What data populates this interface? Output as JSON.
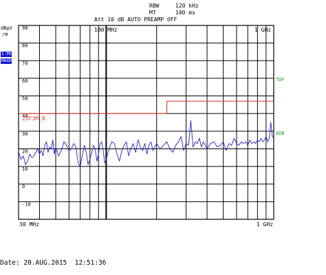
{
  "header": {
    "rbw_label": "RBW",
    "rbw_value": "120 kHz",
    "mt_label": "MT",
    "mt_value": "100 ms",
    "att_line": "Att 10 dB AUTO PREAMP OFF"
  },
  "left_panel": {
    "unit_line1": "dBµV",
    "unit_line2": "/m",
    "trace_badge": "1 PK",
    "detector_badge": "MAXH"
  },
  "right_panel": {
    "tdf_label": "TDF",
    "six_db_label": "6DB"
  },
  "footer": {
    "date_label": "Date:",
    "date_value": "20.AUG.2015",
    "time_value": "12:51:36"
  },
  "chart_data": {
    "type": "line",
    "x_scale": "log",
    "xlim": [
      30,
      1000
    ],
    "ylim": [
      -20,
      90
    ],
    "x_tick_labels": [
      "30 MHz",
      "100 MHz",
      "1 GHz",
      "1 GHz"
    ],
    "y_ticks": [
      90,
      80,
      70,
      60,
      50,
      40,
      30,
      20,
      10,
      0,
      -10
    ],
    "grid": true,
    "limit_line": {
      "name": "22F3M_B",
      "color": "#e8403a",
      "points": [
        [
          30,
          40
        ],
        [
          230,
          40
        ],
        [
          230,
          47
        ],
        [
          1000,
          47
        ]
      ]
    },
    "series": [
      {
        "color": "#1f1fd0",
        "x": [
          30,
          31,
          32,
          33,
          34,
          35,
          36,
          37,
          38,
          39,
          40,
          41,
          42,
          43,
          44,
          45,
          46,
          47,
          48,
          49,
          50,
          52,
          54,
          56,
          58,
          60,
          62,
          64,
          66,
          68,
          70,
          72,
          74,
          76,
          78,
          80,
          82,
          84,
          86,
          88,
          90,
          92,
          94,
          96,
          98,
          100,
          104,
          108,
          112,
          116,
          120,
          124,
          128,
          132,
          136,
          140,
          145,
          150,
          155,
          160,
          165,
          170,
          175,
          180,
          185,
          190,
          195,
          200,
          210,
          220,
          230,
          240,
          250,
          260,
          270,
          280,
          290,
          300,
          310,
          320,
          330,
          340,
          350,
          360,
          370,
          380,
          390,
          400,
          420,
          440,
          460,
          480,
          500,
          520,
          540,
          560,
          580,
          600,
          620,
          640,
          660,
          680,
          700,
          720,
          740,
          760,
          780,
          800,
          820,
          840,
          860,
          880,
          900,
          920,
          940,
          960,
          980,
          1000
        ],
        "values": [
          18,
          14,
          16,
          11,
          13,
          17,
          15,
          16,
          18,
          20,
          17,
          19,
          16,
          22,
          24,
          18,
          21,
          20,
          25,
          17,
          21,
          16,
          19,
          24,
          22,
          19,
          20,
          23,
          21,
          12,
          10,
          16,
          22,
          18,
          11,
          14,
          18,
          22,
          20,
          13,
          17,
          23,
          24,
          19,
          12,
          14,
          20,
          24,
          23,
          17,
          13,
          19,
          22,
          24,
          16,
          20,
          23,
          18,
          25,
          21,
          19,
          23,
          17,
          22,
          24,
          19,
          21,
          23,
          20,
          22,
          24,
          20,
          18,
          22,
          24,
          27,
          19,
          23,
          22,
          36,
          21,
          24,
          23,
          26,
          21,
          24,
          22,
          20,
          23,
          24,
          21,
          22,
          24,
          19,
          23,
          22,
          26,
          23,
          22,
          24,
          23,
          24,
          22,
          25,
          23,
          24,
          23,
          25,
          24,
          26,
          24,
          25,
          27,
          24,
          26,
          35,
          27,
          26
        ]
      }
    ]
  }
}
